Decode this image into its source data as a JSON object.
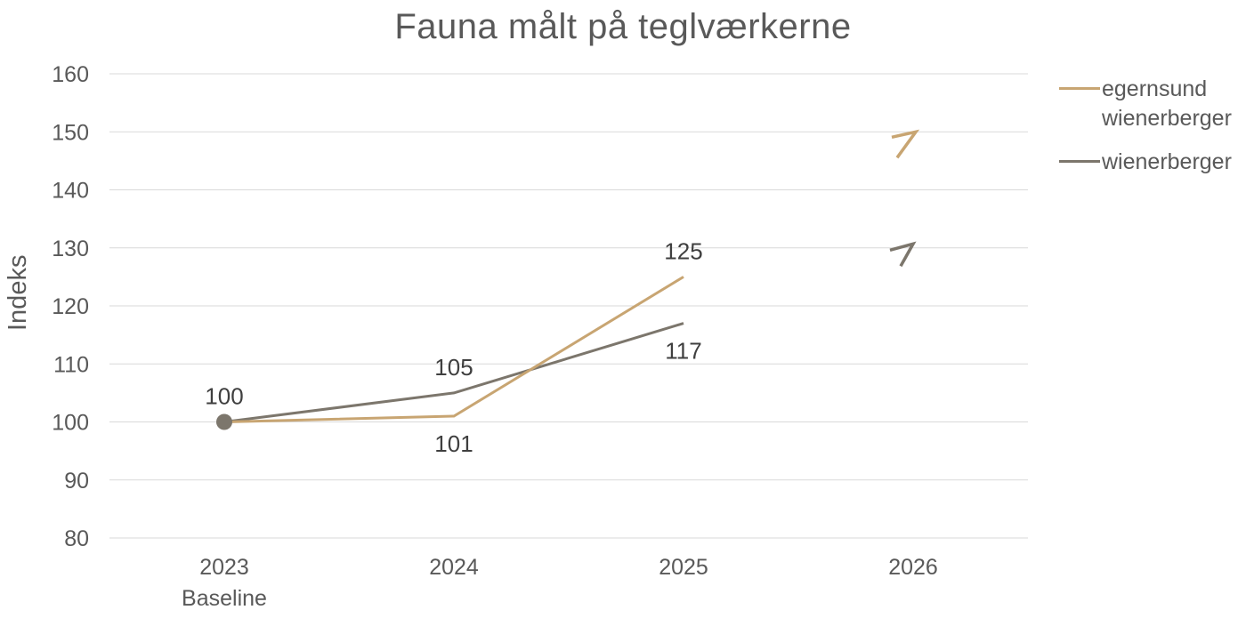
{
  "title": "Fauna målt på teglværkerne",
  "y_axis_title": "Indeks",
  "colors": {
    "gridline": "#d9d9d9",
    "title_text": "#595959",
    "axis_text": "#595959",
    "data_label_text": "#3f3f3f",
    "egernsund_wienerberger": "#c8a572",
    "wienerberger": "#7c766c"
  },
  "chart_data": {
    "type": "line",
    "title": "Fauna målt på teglværkerne",
    "ylabel": "Indeks",
    "xlabel": "",
    "ylim": [
      80,
      160
    ],
    "grid": true,
    "legend_position": "right",
    "y_ticks": [
      160,
      150,
      140,
      130,
      120,
      110,
      100,
      90,
      80
    ],
    "categories": [
      "2023",
      "2024",
      "2025",
      "2026"
    ],
    "x_sublabels": [
      "Baseline",
      "",
      "",
      ""
    ],
    "series": [
      {
        "name": "egernsund wienerberger",
        "color": "#c8a572",
        "values": [
          100,
          101,
          125,
          null
        ]
      },
      {
        "name": "wienerberger",
        "color": "#7c766c",
        "values": [
          100,
          105,
          117,
          null
        ]
      }
    ],
    "markers": [
      {
        "series": 1,
        "point": 0,
        "type": "circle"
      }
    ],
    "point_labels": [
      {
        "series": 1,
        "point": 0,
        "value": 100,
        "position": "above"
      },
      {
        "series": 1,
        "point": 1,
        "value": 105,
        "position": "above"
      },
      {
        "series": 0,
        "point": 1,
        "value": 101,
        "position": "below"
      },
      {
        "series": 0,
        "point": 2,
        "value": 125,
        "position": "above"
      },
      {
        "series": 1,
        "point": 2,
        "value": 117,
        "position": "below"
      }
    ],
    "trend_markers": [
      {
        "series": 0,
        "point": 3,
        "value": 148,
        "shape": "arrow-7"
      },
      {
        "series": 1,
        "point": 3,
        "value": 129,
        "shape": "arrow-chevron"
      }
    ]
  }
}
